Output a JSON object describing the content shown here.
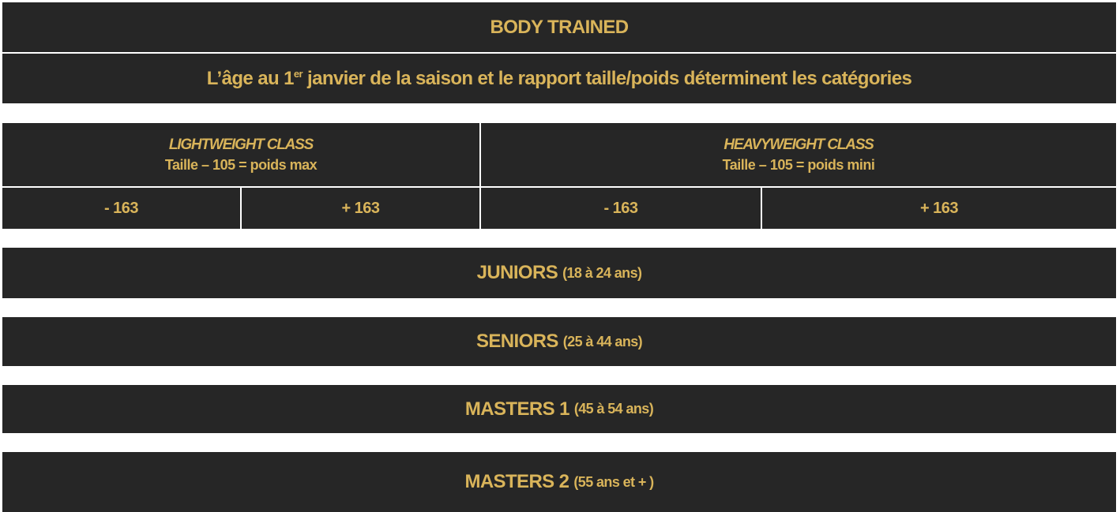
{
  "title": "BODY TRAINED",
  "subtitle": {
    "before": "L’âge au 1",
    "sup": "er",
    "after": " janvier de la saison et le rapport taille/poids déterminent les catégories"
  },
  "classes": [
    {
      "name": "LIGHTWEIGHT CLASS",
      "formula": "Taille – 105 = poids max",
      "sub": [
        "- 163",
        "+ 163"
      ]
    },
    {
      "name": "HEAVYWEIGHT CLASS",
      "formula": "Taille – 105 = poids mini",
      "sub": [
        "- 163",
        "+ 163"
      ]
    }
  ],
  "categories": [
    {
      "name": "JUNIORS",
      "ages": "(18 à 24 ans)"
    },
    {
      "name": "SENIORS",
      "ages": "(25 à 44 ans)"
    },
    {
      "name": "MASTERS 1",
      "ages": "(45 à 54 ans)"
    },
    {
      "name": "MASTERS 2",
      "ages": "(55 ans et + )"
    }
  ],
  "colors": {
    "background": "#262626",
    "text": "#d9b45a"
  }
}
